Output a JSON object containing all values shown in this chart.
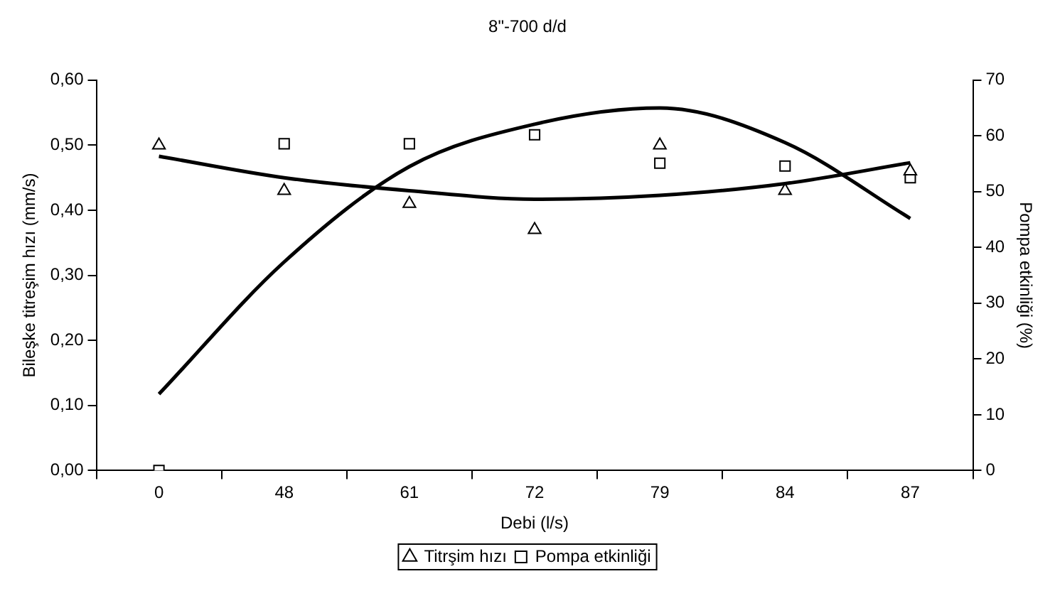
{
  "chart_data": {
    "type": "scatter",
    "title": "8\"-700 d/d",
    "xlabel": "Debi (l/s)",
    "ylabel": "Bileşke titreşim hızı (mm/s)",
    "y2label": "Pompa etkinliği (%)",
    "categories": [
      "0",
      "48",
      "61",
      "72",
      "79",
      "84",
      "87"
    ],
    "series": [
      {
        "name": "Titrşim hızı",
        "marker": "triangle",
        "color": "#000000",
        "values": [
          0.5,
          0.43,
          0.41,
          0.37,
          0.5,
          0.43,
          0.46
        ]
      },
      {
        "name": "Pompa etkinliği",
        "marker": "square",
        "color": "#000000",
        "axis": "y2",
        "values": [
          0,
          58.6,
          58.6,
          60.2,
          55.1,
          54.6,
          52.5
        ]
      },
      {
        "type": "line",
        "marker": "none",
        "color": "#000000",
        "values": [
          0.483,
          0.45,
          0.43,
          0.417,
          0.423,
          0.441,
          0.473
        ]
      },
      {
        "type": "line",
        "marker": "none",
        "color": "#000000",
        "axis": "y2",
        "values": [
          13.7,
          37.4,
          54.5,
          62.1,
          65.0,
          58.8,
          45.2
        ]
      }
    ],
    "ylim": [
      0,
      0.6
    ],
    "yticks": [
      {
        "value": 0,
        "label": "0,00"
      },
      {
        "value": 0.1,
        "label": "0,10"
      },
      {
        "value": 0.2,
        "label": "0,20"
      },
      {
        "value": 0.3,
        "label": "0,30"
      },
      {
        "value": 0.4,
        "label": "0,40"
      },
      {
        "value": 0.5,
        "label": "0,50"
      },
      {
        "value": 0.6,
        "label": "0,60"
      }
    ],
    "y2lim": [
      0,
      70
    ],
    "y2ticks": [
      0,
      10,
      20,
      30,
      40,
      50,
      60,
      70
    ],
    "grid": false,
    "legend": "bottom"
  }
}
